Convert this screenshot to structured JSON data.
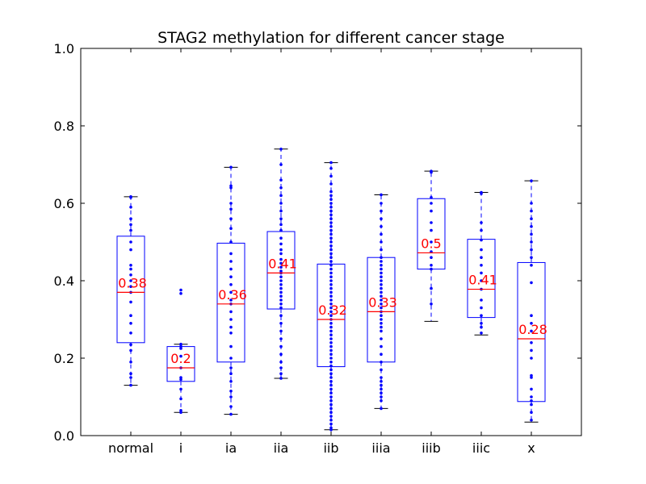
{
  "chart_data": {
    "type": "box",
    "title": "STAG2 methylation for different cancer stage",
    "xlabel": "",
    "ylabel": "",
    "ylim": [
      0.0,
      1.0
    ],
    "yticks": [
      "0.0",
      "0.2",
      "0.4",
      "0.6",
      "0.8",
      "1.0"
    ],
    "grid": false,
    "colors": {
      "box": "#0000ff",
      "median": "#ff0000",
      "points": "#0000ff",
      "label": "#ff0000",
      "axes": "#000000"
    },
    "categories": [
      "normal",
      "i",
      "ia",
      "iia",
      "iib",
      "iiia",
      "iiib",
      "iiic",
      "x"
    ],
    "boxes": [
      {
        "category": "normal",
        "whisker_low": 0.13,
        "q1": 0.24,
        "median": 0.37,
        "q3": 0.515,
        "whisker_high": 0.617,
        "mean_label": "0.38",
        "points": [
          0.617,
          0.615,
          0.59,
          0.56,
          0.545,
          0.53,
          0.5,
          0.48,
          0.44,
          0.43,
          0.415,
          0.4,
          0.385,
          0.37,
          0.345,
          0.31,
          0.29,
          0.265,
          0.235,
          0.22,
          0.19,
          0.16,
          0.15,
          0.13
        ]
      },
      {
        "category": "i",
        "whisker_low": 0.06,
        "q1": 0.14,
        "median": 0.175,
        "q3": 0.23,
        "whisker_high": 0.236,
        "mean_label": "0.2",
        "points": [
          0.376,
          0.367,
          0.236,
          0.23,
          0.225,
          0.205,
          0.175,
          0.15,
          0.145,
          0.12,
          0.095,
          0.065,
          0.06
        ]
      },
      {
        "category": "ia",
        "whisker_low": 0.055,
        "q1": 0.19,
        "median": 0.34,
        "q3": 0.497,
        "whisker_high": 0.693,
        "mean_label": "0.36",
        "points": [
          0.693,
          0.645,
          0.64,
          0.6,
          0.585,
          0.56,
          0.535,
          0.5,
          0.47,
          0.45,
          0.43,
          0.41,
          0.39,
          0.37,
          0.35,
          0.34,
          0.32,
          0.3,
          0.28,
          0.265,
          0.23,
          0.2,
          0.175,
          0.16,
          0.14,
          0.115,
          0.1,
          0.075,
          0.055
        ]
      },
      {
        "category": "iia",
        "whisker_low": 0.148,
        "q1": 0.327,
        "median": 0.42,
        "q3": 0.527,
        "whisker_high": 0.74,
        "mean_label": "0.41",
        "points": [
          0.74,
          0.7,
          0.66,
          0.64,
          0.62,
          0.6,
          0.58,
          0.56,
          0.545,
          0.53,
          0.51,
          0.495,
          0.48,
          0.47,
          0.455,
          0.445,
          0.435,
          0.425,
          0.42,
          0.41,
          0.4,
          0.39,
          0.38,
          0.37,
          0.36,
          0.35,
          0.34,
          0.33,
          0.31,
          0.29,
          0.27,
          0.25,
          0.23,
          0.21,
          0.19,
          0.175,
          0.16,
          0.148
        ]
      },
      {
        "category": "iib",
        "whisker_low": 0.015,
        "q1": 0.178,
        "median": 0.3,
        "q3": 0.443,
        "whisker_high": 0.705,
        "mean_label": "0.32",
        "points": [
          0.705,
          0.69,
          0.67,
          0.65,
          0.63,
          0.62,
          0.61,
          0.6,
          0.59,
          0.58,
          0.57,
          0.56,
          0.55,
          0.54,
          0.53,
          0.52,
          0.51,
          0.5,
          0.49,
          0.48,
          0.47,
          0.46,
          0.45,
          0.44,
          0.43,
          0.42,
          0.41,
          0.4,
          0.39,
          0.38,
          0.37,
          0.36,
          0.35,
          0.34,
          0.33,
          0.32,
          0.31,
          0.3,
          0.29,
          0.28,
          0.27,
          0.26,
          0.25,
          0.24,
          0.23,
          0.22,
          0.21,
          0.2,
          0.19,
          0.18,
          0.17,
          0.16,
          0.15,
          0.14,
          0.13,
          0.12,
          0.11,
          0.1,
          0.09,
          0.08,
          0.07,
          0.06,
          0.05,
          0.04,
          0.03,
          0.02,
          0.015
        ]
      },
      {
        "category": "iiia",
        "whisker_low": 0.07,
        "q1": 0.19,
        "median": 0.32,
        "q3": 0.46,
        "whisker_high": 0.622,
        "mean_label": "0.33",
        "points": [
          0.622,
          0.6,
          0.58,
          0.56,
          0.54,
          0.52,
          0.5,
          0.48,
          0.46,
          0.45,
          0.44,
          0.43,
          0.42,
          0.41,
          0.4,
          0.39,
          0.38,
          0.37,
          0.36,
          0.35,
          0.34,
          0.33,
          0.32,
          0.31,
          0.3,
          0.29,
          0.28,
          0.27,
          0.25,
          0.23,
          0.21,
          0.19,
          0.17,
          0.15,
          0.14,
          0.13,
          0.12,
          0.11,
          0.1,
          0.09,
          0.07
        ]
      },
      {
        "category": "iiib",
        "whisker_low": 0.295,
        "q1": 0.43,
        "median": 0.472,
        "q3": 0.612,
        "whisker_high": 0.683,
        "mean_label": "0.5",
        "points": [
          0.683,
          0.68,
          0.615,
          0.6,
          0.58,
          0.55,
          0.53,
          0.5,
          0.475,
          0.46,
          0.44,
          0.43,
          0.38,
          0.34
        ]
      },
      {
        "category": "iiic",
        "whisker_low": 0.26,
        "q1": 0.305,
        "median": 0.378,
        "q3": 0.507,
        "whisker_high": 0.628,
        "mean_label": "0.41",
        "points": [
          0.628,
          0.625,
          0.55,
          0.53,
          0.505,
          0.48,
          0.46,
          0.44,
          0.42,
          0.4,
          0.378,
          0.35,
          0.33,
          0.31,
          0.29,
          0.28,
          0.265
        ]
      },
      {
        "category": "x",
        "whisker_low": 0.035,
        "q1": 0.088,
        "median": 0.25,
        "q3": 0.447,
        "whisker_high": 0.658,
        "mean_label": "0.28",
        "points": [
          0.658,
          0.6,
          0.58,
          0.56,
          0.54,
          0.52,
          0.5,
          0.48,
          0.46,
          0.44,
          0.395,
          0.31,
          0.29,
          0.27,
          0.24,
          0.22,
          0.2,
          0.155,
          0.15,
          0.12,
          0.1,
          0.09,
          0.08,
          0.06,
          0.04
        ]
      }
    ]
  }
}
